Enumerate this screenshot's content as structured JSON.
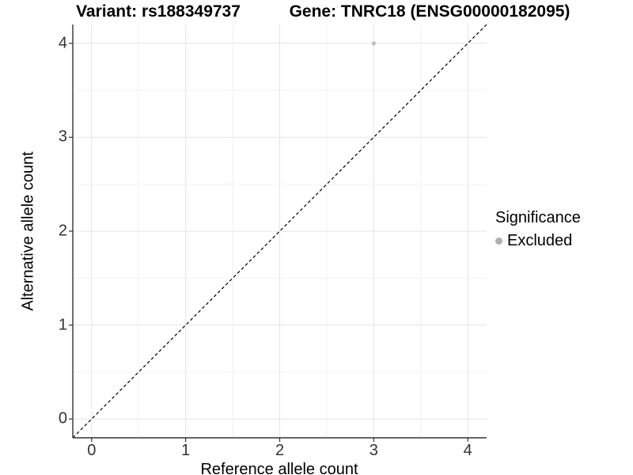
{
  "chart_data": {
    "type": "scatter",
    "title_left": "Variant: rs188349737",
    "title_right": "Gene: TNRC18 (ENSG00000182095)",
    "xlabel": "Reference allele count",
    "ylabel": "Alternative allele count",
    "x_ticks": [
      0,
      1,
      2,
      3,
      4
    ],
    "y_ticks": [
      0,
      1,
      2,
      3,
      4
    ],
    "x_minor_ticks": [
      0.5,
      1.5,
      2.5,
      3.5
    ],
    "y_minor_ticks": [
      0.5,
      1.5,
      2.5,
      3.5
    ],
    "xlim": [
      -0.2,
      4.2
    ],
    "ylim": [
      -0.2,
      4.2
    ],
    "grid": "major and minor gridlines, white background",
    "points": [
      {
        "x": 3,
        "y": 4,
        "significance": "Excluded"
      }
    ],
    "point_color": "#bebebe",
    "reference_line": {
      "type": "identity y=x",
      "style": "dashed",
      "color": "#000000"
    },
    "legend": {
      "title": "Significance",
      "position": "right",
      "entries": [
        {
          "label": "Excluded",
          "color": "#b0b0b0"
        }
      ]
    },
    "colors": {
      "axis_line": "#333333",
      "major_grid": "#e4e4e4",
      "minor_grid": "#f2f2f2",
      "tick_mark": "#333333"
    }
  }
}
